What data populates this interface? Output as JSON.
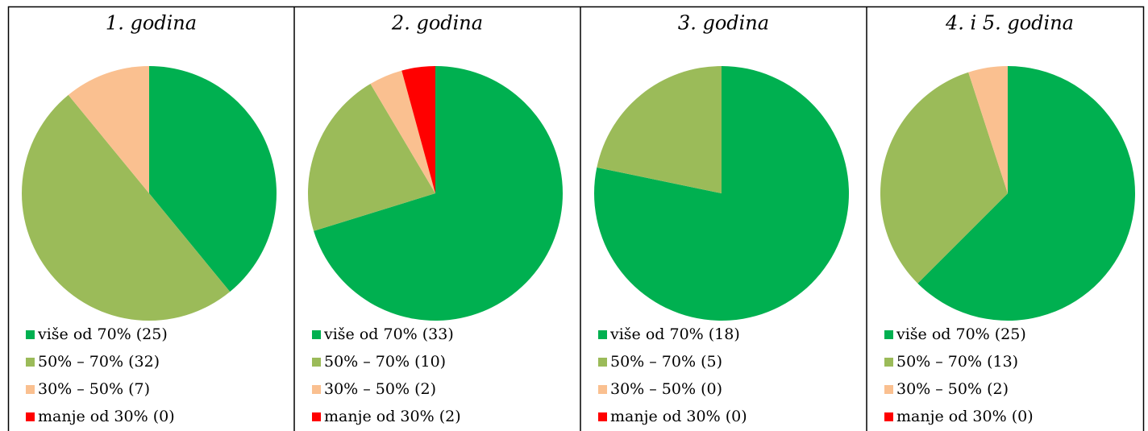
{
  "chart_data": [
    {
      "type": "pie",
      "title": "1. godina",
      "categories": [
        "više od 70%",
        "50% – 70%",
        "30% – 50%",
        "manje od 30%"
      ],
      "values": [
        25,
        32,
        7,
        0
      ],
      "value_labels": [
        "(25)",
        "(32)",
        "(7)",
        "(0)"
      ],
      "colors": [
        "#00b050",
        "#9bbb59",
        "#fac090",
        "#ff0000"
      ]
    },
    {
      "type": "pie",
      "title": "2. godina",
      "categories": [
        "više od 70%",
        "50% – 70%",
        "30% – 50%",
        "manje od 30%"
      ],
      "values": [
        33,
        10,
        2,
        2
      ],
      "value_labels": [
        "(33)",
        "(10)",
        "(2)",
        "(2)"
      ],
      "colors": [
        "#00b050",
        "#9bbb59",
        "#fac090",
        "#ff0000"
      ]
    },
    {
      "type": "pie",
      "title": "3. godina",
      "categories": [
        "više od 70%",
        "50% – 70%",
        "30% – 50%",
        "manje od 30%"
      ],
      "values": [
        18,
        5,
        0,
        0
      ],
      "value_labels": [
        "(18)",
        "(5)",
        "(0)",
        "(0)"
      ],
      "colors": [
        "#00b050",
        "#9bbb59",
        "#fac090",
        "#ff0000"
      ]
    },
    {
      "type": "pie",
      "title": "4. i 5. godina",
      "categories": [
        "više od 70%",
        "50% – 70%",
        "30% – 50%",
        "manje od 30%"
      ],
      "values": [
        25,
        13,
        2,
        0
      ],
      "value_labels": [
        "(25)",
        "(13)",
        "(2)",
        "(0)"
      ],
      "colors": [
        "#00b050",
        "#9bbb59",
        "#fac090",
        "#ff0000"
      ]
    }
  ]
}
